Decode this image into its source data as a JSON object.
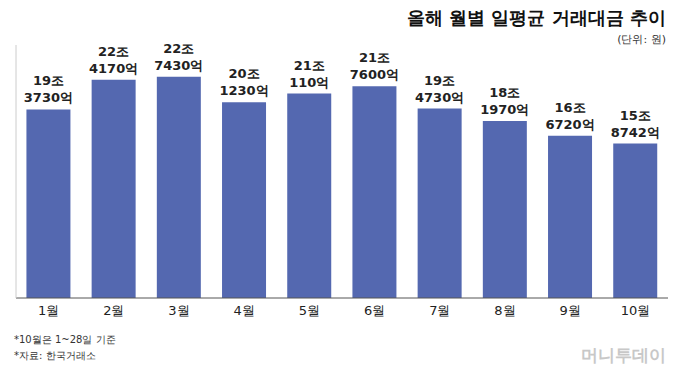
{
  "chart_data": {
    "type": "bar",
    "title": "올해 월별 일평균 거래대금 추이",
    "subtitle": "(단위: 원)",
    "categories": [
      "1월",
      "2월",
      "3월",
      "4월",
      "5월",
      "6월",
      "7월",
      "8월",
      "9월",
      "10월"
    ],
    "values": [
      193730,
      224170,
      227430,
      201230,
      210110,
      217600,
      194730,
      181970,
      166720,
      158742
    ],
    "value_labels": [
      "19조 3730억",
      "22조 4170억",
      "22조 7430억",
      "20조 1230억",
      "21조 110억",
      "21조 7600억",
      "19조 4730억",
      "18조 1970억",
      "16조 6720억",
      "15조 8742억"
    ],
    "color": "#5468b0",
    "ylim": [
      0,
      260000
    ],
    "grid": false,
    "data_labels": true,
    "tick_labels": "x",
    "annotations": [
      "*10월은 1~28일 기준",
      "*자료: 한국거래소",
      "머니투데이"
    ]
  }
}
